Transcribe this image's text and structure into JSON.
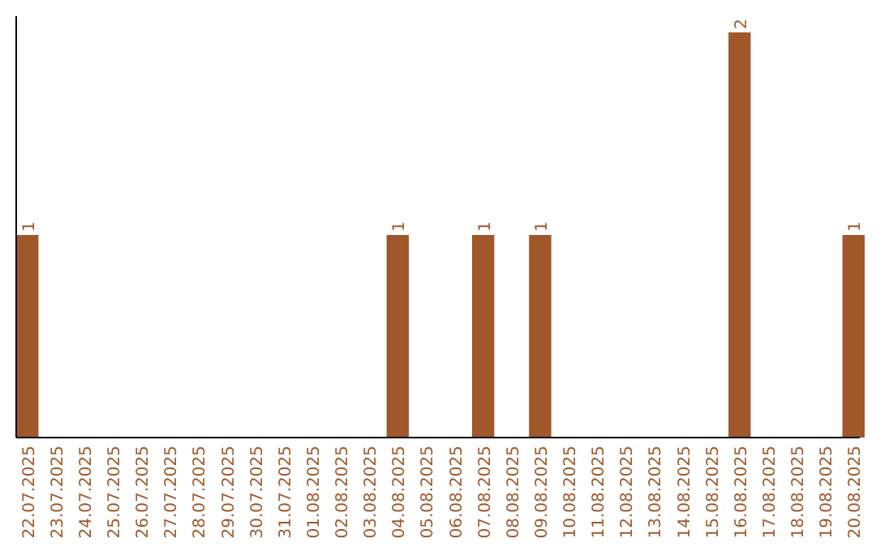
{
  "chart_data": {
    "type": "bar",
    "categories": [
      "22.07.2025",
      "23.07.2025",
      "24.07.2025",
      "25.07.2025",
      "26.07.2025",
      "27.07.2025",
      "28.07.2025",
      "29.07.2025",
      "30.07.2025",
      "31.07.2025",
      "01.08.2025",
      "02.08.2025",
      "03.08.2025",
      "04.08.2025",
      "05.08.2025",
      "06.08.2025",
      "07.08.2025",
      "08.08.2025",
      "09.08.2025",
      "10.08.2025",
      "11.08.2025",
      "12.08.2025",
      "13.08.2025",
      "14.08.2025",
      "15.08.2025",
      "16.08.2025",
      "17.08.2025",
      "18.08.2025",
      "19.08.2025",
      "20.08.2025"
    ],
    "values": [
      1,
      0,
      0,
      0,
      0,
      0,
      0,
      0,
      0,
      0,
      0,
      0,
      0,
      1,
      0,
      0,
      1,
      0,
      1,
      0,
      0,
      0,
      0,
      0,
      0,
      2,
      0,
      0,
      0,
      1
    ],
    "value_labels": [
      "1",
      null,
      null,
      null,
      null,
      null,
      null,
      null,
      null,
      null,
      null,
      null,
      null,
      "1",
      null,
      null,
      "1",
      null,
      "1",
      null,
      null,
      null,
      null,
      null,
      null,
      "2",
      null,
      null,
      null,
      "1"
    ],
    "color": "#a0582a",
    "ylim": [
      0,
      2
    ],
    "tick_labels": "x"
  }
}
